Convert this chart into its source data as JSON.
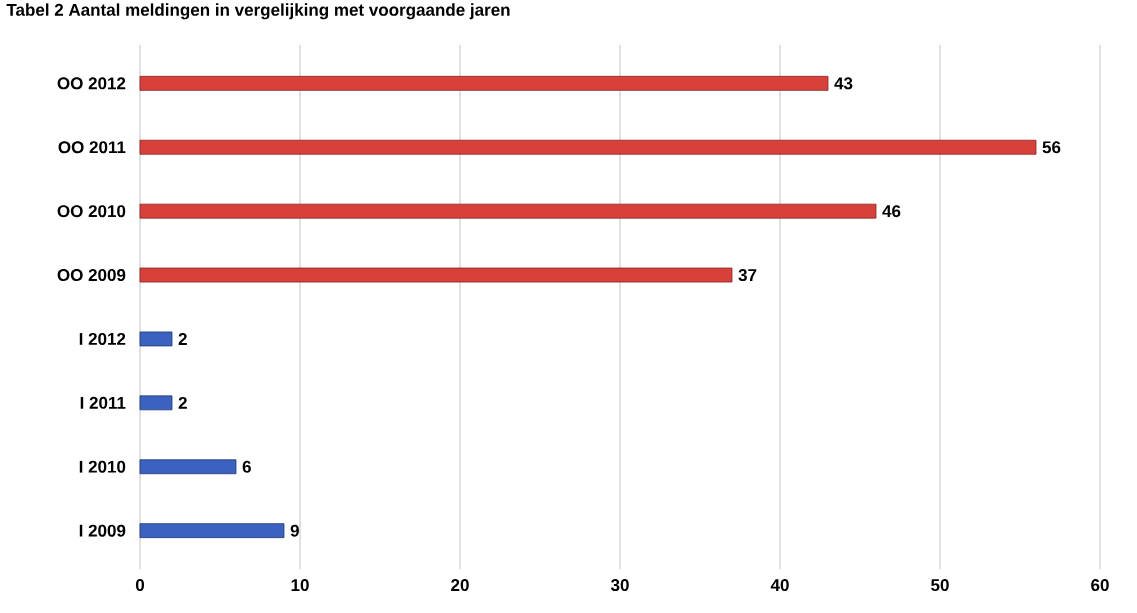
{
  "chart_data": {
    "type": "bar",
    "orientation": "horizontal",
    "title": "Tabel 2 Aantal meldingen in vergelijking met voorgaande jaren",
    "categories": [
      "OO 2012",
      "OO 2011",
      "OO 2010",
      "OO 2009",
      "I 2012",
      "I 2011",
      "I 2010",
      "I 2009"
    ],
    "values": [
      43,
      56,
      46,
      37,
      2,
      2,
      6,
      9
    ],
    "colors": [
      "#d9403a",
      "#d9403a",
      "#d9403a",
      "#d9403a",
      "#3a62c0",
      "#3a62c0",
      "#3a62c0",
      "#3a62c0"
    ],
    "xlim": [
      0,
      60
    ],
    "xticks": [
      0,
      10,
      20,
      30,
      40,
      50,
      60
    ],
    "grid": "x",
    "data_labels": true
  }
}
